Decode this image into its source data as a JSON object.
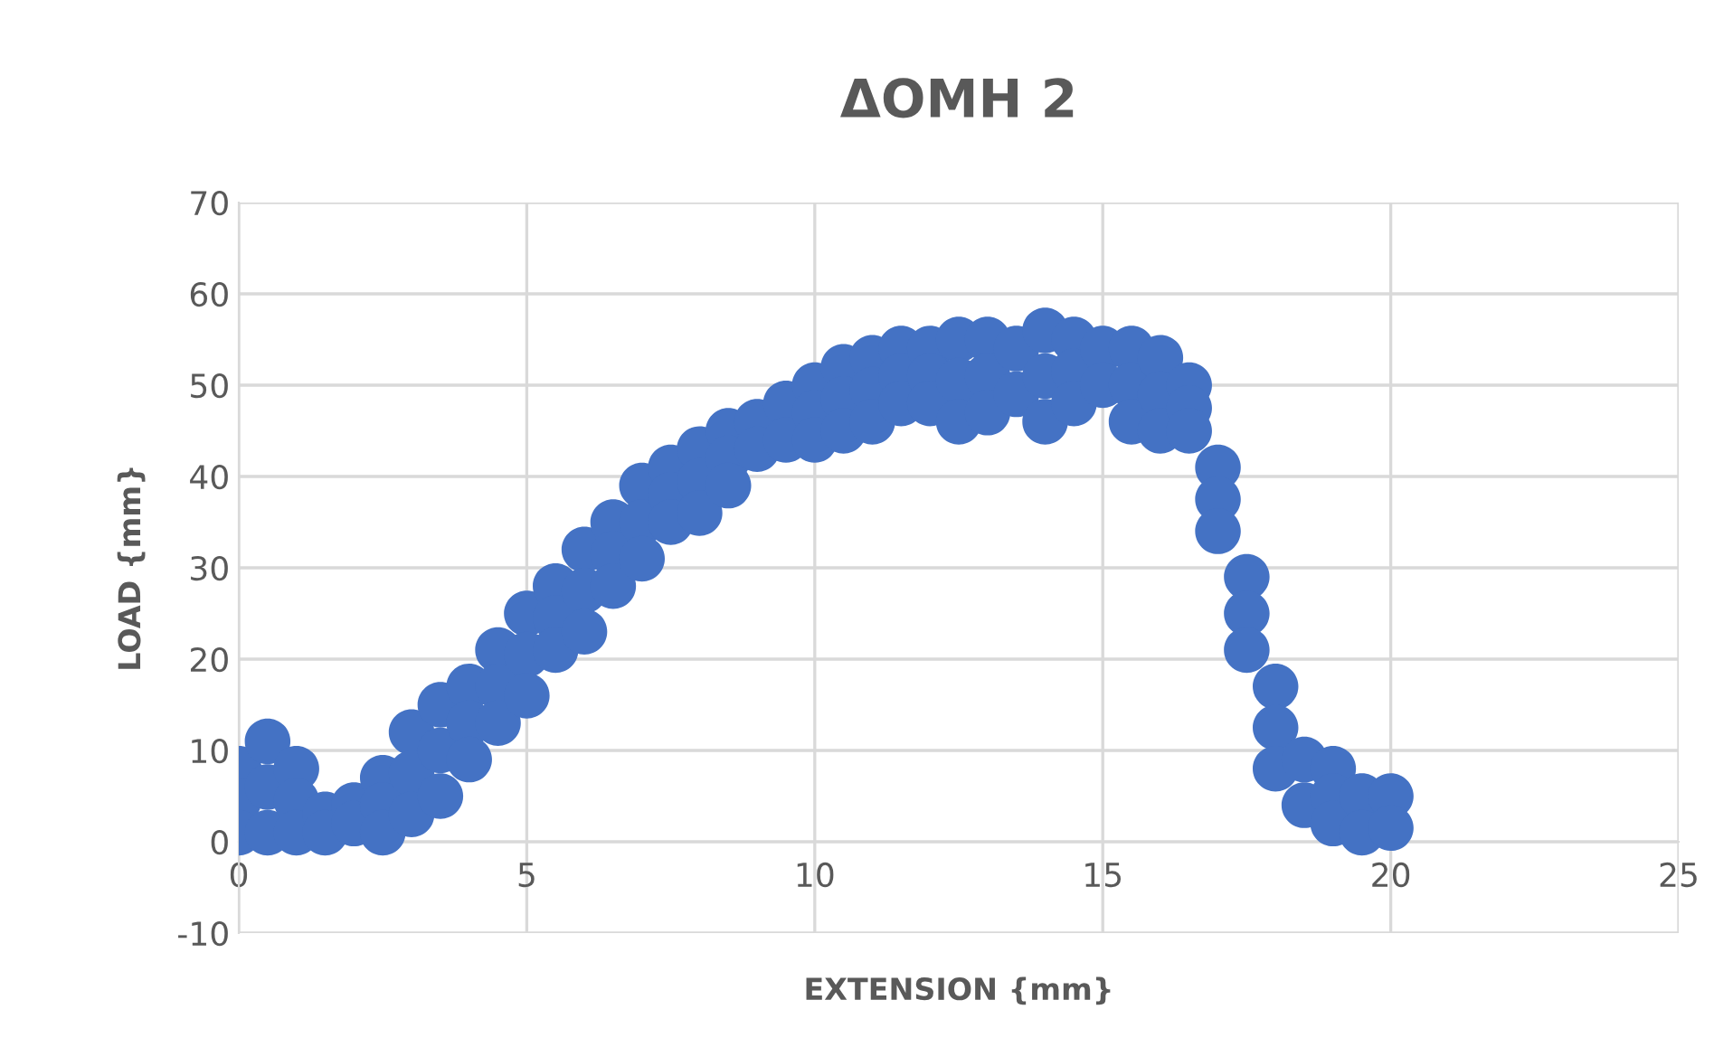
{
  "chart_data": {
    "type": "scatter",
    "title": "ΔΟΜΗ 2",
    "xlabel": "EXTENSION {mm}",
    "ylabel": "LOAD {mm}",
    "xlim": [
      0,
      25
    ],
    "xticks": [
      0,
      5,
      10,
      15,
      20,
      25
    ],
    "ylim": [
      -10,
      70
    ],
    "yticks": [
      -10,
      0,
      10,
      20,
      30,
      40,
      50,
      60,
      70
    ],
    "grid": true,
    "marker": "circle",
    "series": [
      {
        "color": "#4472c4",
        "x": [
          0,
          0,
          0,
          0.5,
          0.5,
          0.5,
          1,
          1,
          1,
          1.5,
          1.5,
          2,
          2,
          2.5,
          2.5,
          2.5,
          3,
          3,
          3,
          3.5,
          3.5,
          3.5,
          4,
          4,
          4,
          4.5,
          4.5,
          4.5,
          5,
          5,
          5,
          5.5,
          5.5,
          5.5,
          6,
          6,
          6,
          6.5,
          6.5,
          6.5,
          7,
          7,
          7,
          7.5,
          7.5,
          7.5,
          8,
          8,
          8,
          8.5,
          8.5,
          8.5,
          9,
          9,
          9.5,
          9.5,
          10,
          10,
          10,
          10.5,
          10.5,
          10.5,
          11,
          11,
          11,
          11.5,
          11.5,
          11.5,
          12,
          12,
          12,
          12.5,
          12.5,
          12.5,
          13,
          13,
          13,
          13.5,
          13.5,
          14,
          14,
          14,
          14.5,
          14.5,
          14.5,
          15,
          15,
          15.5,
          15.5,
          15.5,
          16,
          16,
          16,
          16.5,
          16.5,
          16.5,
          17,
          17,
          17,
          17.5,
          17.5,
          17.5,
          18,
          18,
          18,
          18.5,
          18.5,
          19,
          19,
          19,
          19.5,
          19.5,
          20,
          20
        ],
        "values": [
          8,
          4.5,
          1,
          11,
          6,
          1,
          8,
          4.5,
          1,
          3,
          1,
          4,
          2,
          7,
          4,
          1,
          12,
          7.5,
          3,
          15,
          10,
          5,
          17,
          13,
          9,
          21,
          17,
          13,
          25,
          20.5,
          16,
          28,
          24.5,
          21,
          32,
          27.5,
          23,
          35,
          31.5,
          28,
          39,
          35,
          31,
          41,
          38,
          35,
          43,
          39.5,
          36,
          45,
          42,
          39,
          46,
          43,
          48,
          44,
          50,
          47,
          44,
          52,
          48.5,
          45,
          53,
          49.5,
          46,
          54,
          51,
          48,
          54,
          51,
          48,
          55,
          50.5,
          46,
          55,
          51,
          47,
          54,
          49,
          56,
          51,
          46,
          55,
          51.5,
          48,
          54,
          50,
          54,
          50,
          46,
          53,
          49,
          45,
          50,
          47.5,
          45,
          41,
          37.5,
          34,
          29,
          25,
          21,
          17,
          12.5,
          8,
          9,
          4,
          8,
          5,
          2,
          5,
          1,
          5,
          1.5
        ]
      }
    ]
  }
}
